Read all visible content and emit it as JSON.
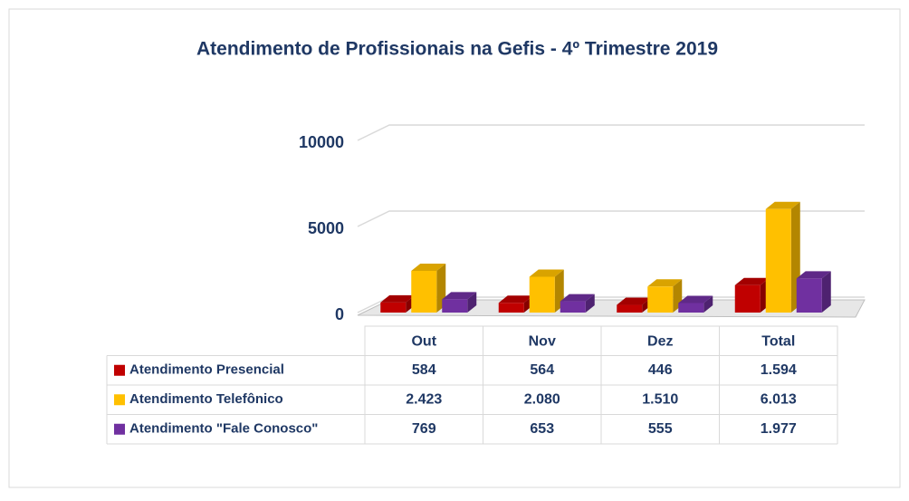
{
  "chart_data": {
    "type": "bar3d",
    "title": "Atendimento de Profissionais na Gefis - 4º Trimestre 2019",
    "categories": [
      "Out",
      "Nov",
      "Dez",
      "Total"
    ],
    "series": [
      {
        "name": "Atendimento Presencial",
        "color": "#c00000",
        "values": [
          584,
          564,
          446,
          1594
        ],
        "value_labels": [
          "584",
          "564",
          "446",
          "1.594"
        ]
      },
      {
        "name": "Atendimento Telefônico",
        "color": "#ffc000",
        "values": [
          2423,
          2080,
          1510,
          6013
        ],
        "value_labels": [
          "2.423",
          "2.080",
          "1.510",
          "6.013"
        ]
      },
      {
        "name": "Atendimento \"Fale Conosco\"",
        "color": "#7030a0",
        "values": [
          769,
          653,
          555,
          1977
        ],
        "value_labels": [
          "769",
          "653",
          "555",
          "1.977"
        ]
      }
    ],
    "ylim": [
      0,
      10000
    ],
    "yticks": [
      0,
      5000,
      10000
    ],
    "grid": true
  }
}
